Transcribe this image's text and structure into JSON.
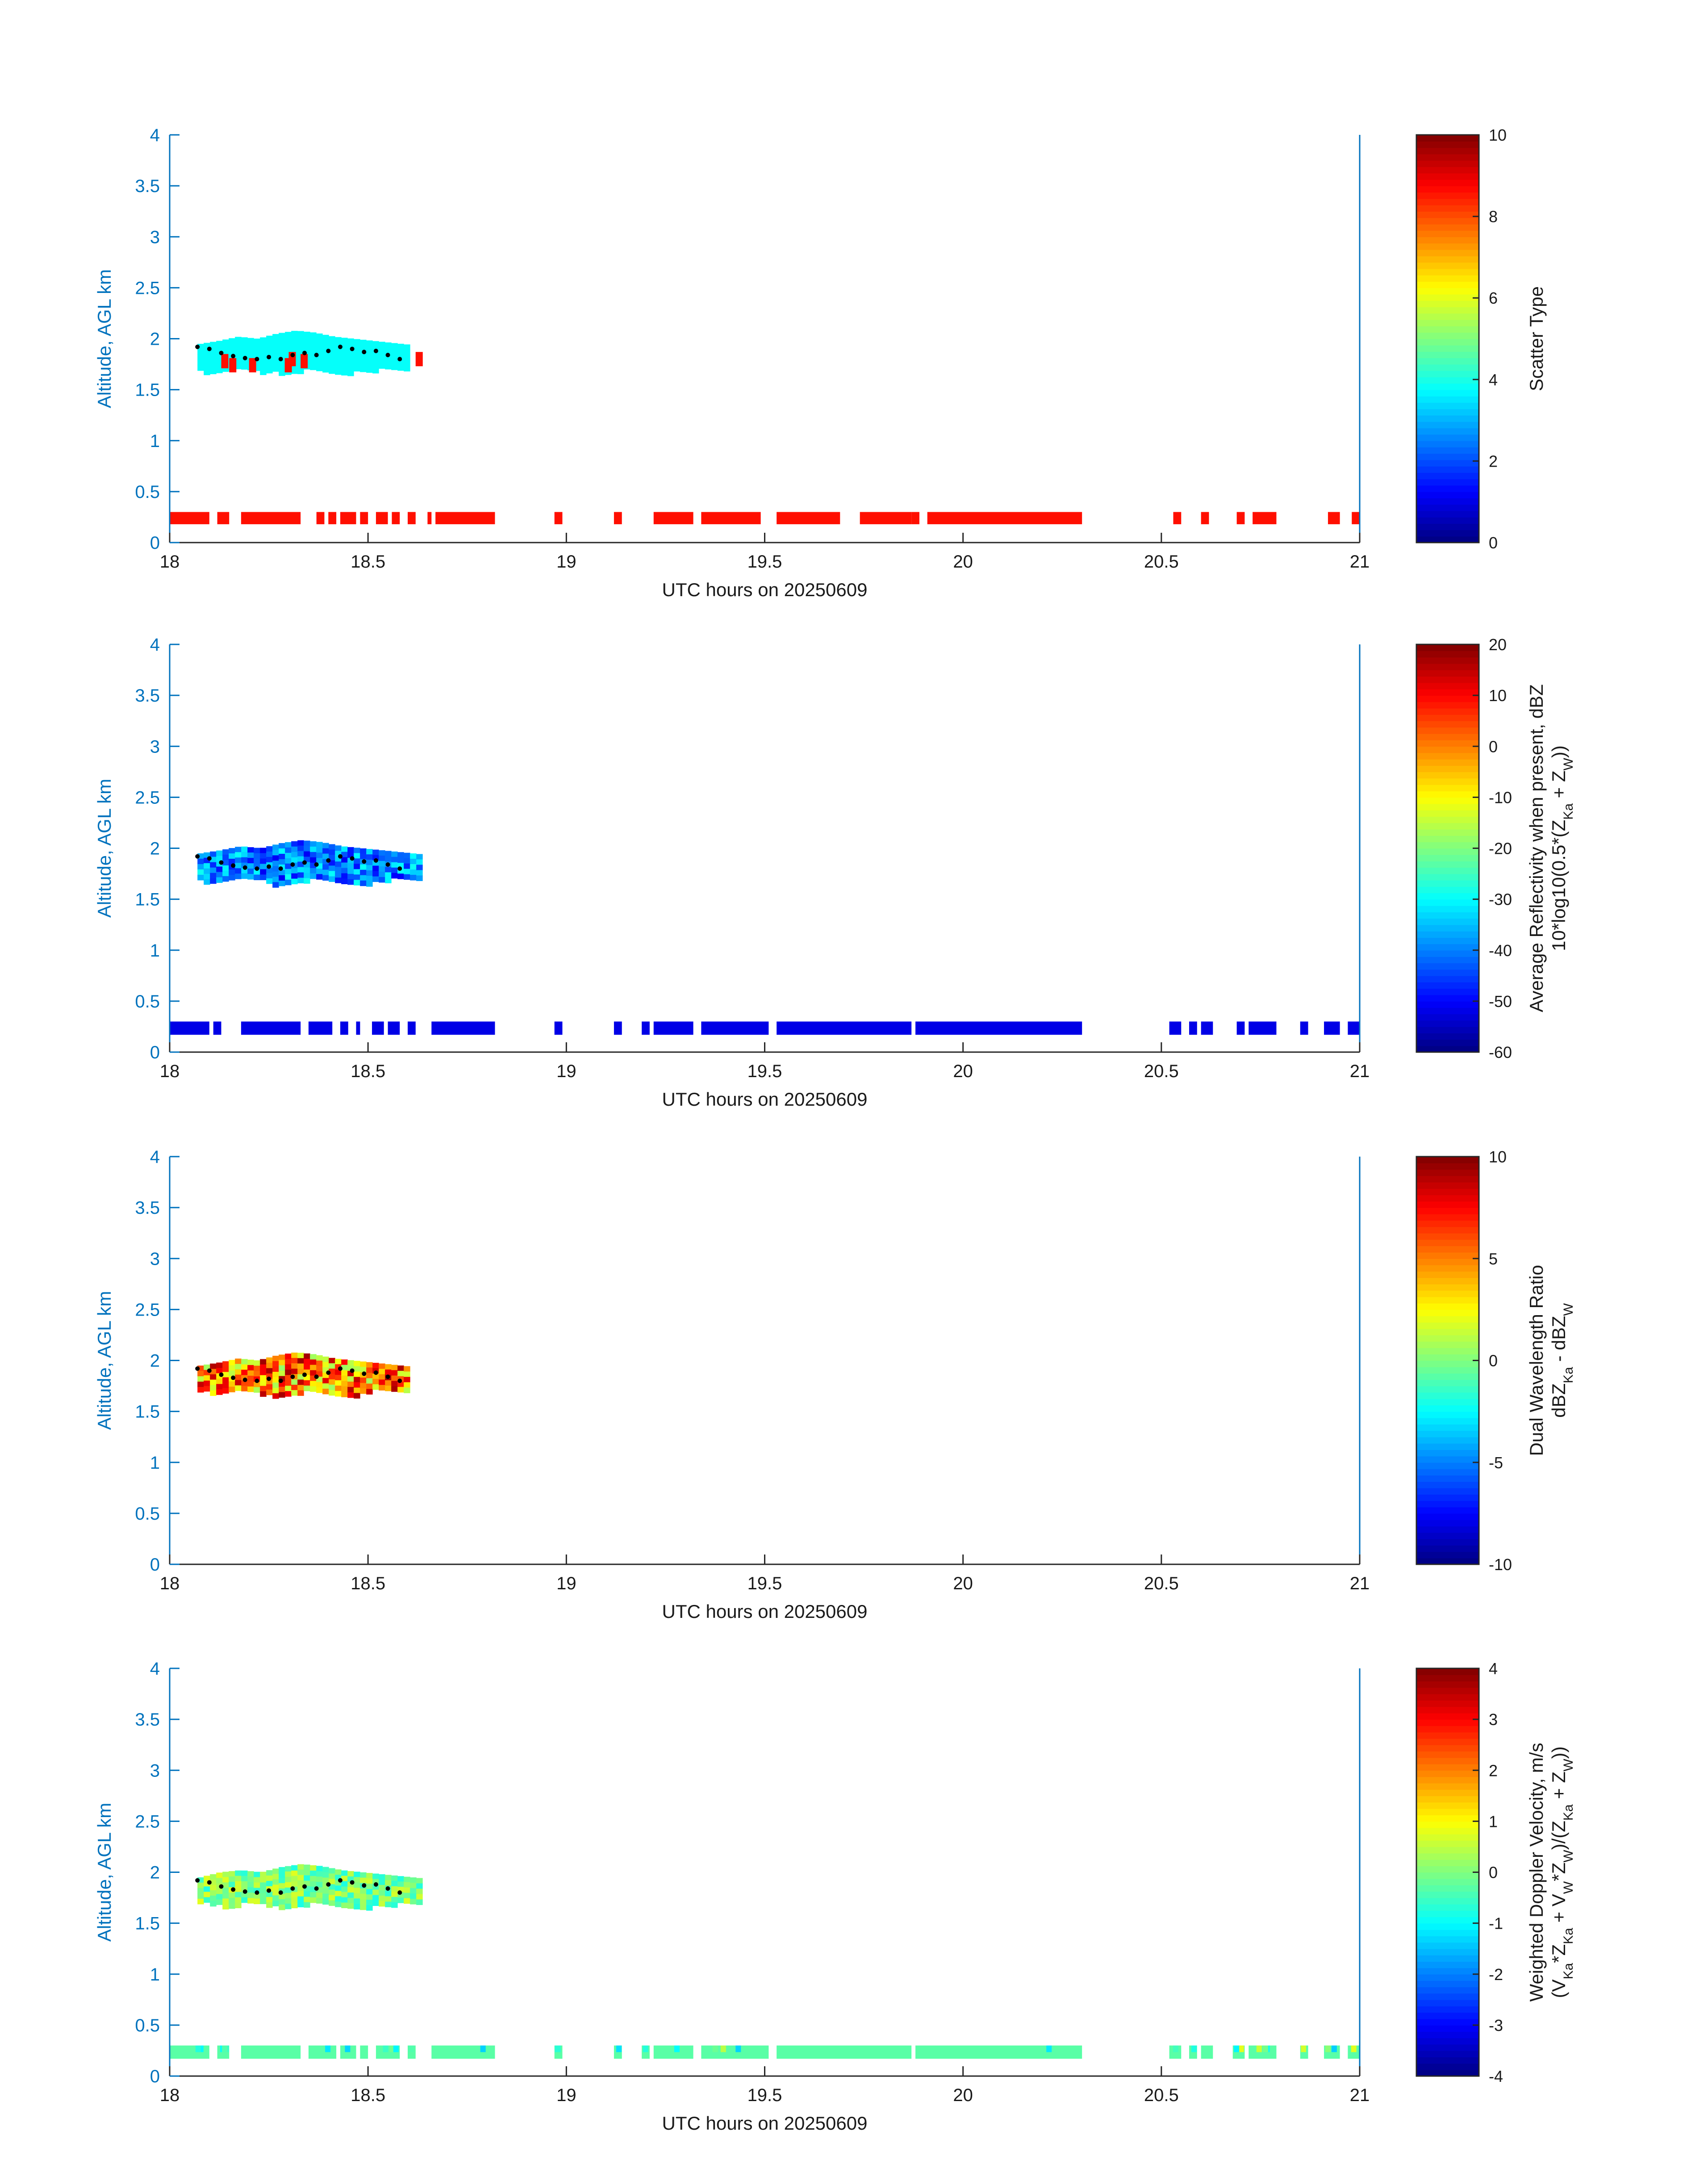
{
  "chart_data": [
    {
      "id": "scatter-type",
      "type": "heatmap",
      "xlabel": "UTC hours on 20250609",
      "ylabel": "Altitude, AGL km",
      "xlim": [
        18,
        21
      ],
      "ylim": [
        0,
        4
      ],
      "xticks": [
        "18",
        "18.5",
        "19",
        "19.5",
        "20",
        "20.5",
        "21"
      ],
      "yticks": [
        "0",
        "0.5",
        "1",
        "1.5",
        "2",
        "2.5",
        "3",
        "3.5",
        "4"
      ],
      "colorbar": {
        "label_lines": [
          "Scatter Type"
        ],
        "range": [
          0,
          10
        ],
        "ticks": [
          "0",
          "2",
          "4",
          "6",
          "8",
          "10"
        ]
      },
      "layers": [
        {
          "name": "surface-band",
          "x_segments": [
            [
              18.0,
              18.1
            ],
            [
              18.12,
              18.15
            ],
            [
              18.18,
              18.33
            ],
            [
              18.37,
              18.39
            ],
            [
              18.4,
              18.42
            ],
            [
              18.43,
              18.47
            ],
            [
              18.48,
              18.5
            ],
            [
              18.52,
              18.55
            ],
            [
              18.56,
              18.58
            ],
            [
              18.6,
              18.62
            ],
            [
              18.65,
              18.66
            ],
            [
              18.67,
              18.82
            ],
            [
              18.97,
              18.99
            ],
            [
              19.12,
              19.14
            ],
            [
              19.22,
              19.32
            ],
            [
              19.34,
              19.49
            ],
            [
              19.53,
              19.69
            ],
            [
              19.74,
              19.87
            ],
            [
              19.87,
              19.89
            ],
            [
              19.91,
              20.3
            ],
            [
              20.53,
              20.55
            ],
            [
              20.6,
              20.62
            ],
            [
              20.69,
              20.71
            ],
            [
              20.73,
              20.79
            ],
            [
              20.92,
              20.95
            ],
            [
              20.98,
              21.0
            ]
          ],
          "y_range": [
            0.18,
            0.3
          ],
          "value": 8.6
        },
        {
          "name": "cloud-layer",
          "x_range": [
            18.07,
            18.6
          ],
          "y_bottom": [
            1.7,
            1.68,
            1.72,
            1.7,
            1.68,
            1.7,
            1.72,
            1.7,
            1.68,
            1.7,
            1.72,
            1.7
          ],
          "y_top": [
            1.95,
            1.98,
            2.02,
            2.0,
            2.05,
            2.08,
            2.06,
            2.02,
            2.0,
            1.98,
            1.96,
            1.94
          ],
          "value": 3.8,
          "speckle_values": [
            8.6
          ],
          "speckle_fraction": 0.0
        },
        {
          "name": "cloud-speckle",
          "points": [
            [
              18.13,
              1.78,
              8.6
            ],
            [
              18.15,
              1.74,
              8.6
            ],
            [
              18.2,
              1.74,
              8.6
            ],
            [
              18.29,
              1.74,
              8.6
            ],
            [
              18.3,
              1.8,
              8.6
            ],
            [
              18.33,
              1.78,
              8.6
            ],
            [
              18.62,
              1.8,
              8.6
            ]
          ],
          "value": 8.6
        }
      ],
      "cloud_base_dots": {
        "x": [
          18.07,
          18.1,
          18.13,
          18.16,
          18.19,
          18.22,
          18.25,
          18.28,
          18.31,
          18.34,
          18.37,
          18.4,
          18.43,
          18.46,
          18.49,
          18.52,
          18.55,
          18.58
        ],
        "y": [
          1.92,
          1.9,
          1.86,
          1.83,
          1.81,
          1.8,
          1.82,
          1.8,
          1.84,
          1.86,
          1.84,
          1.88,
          1.92,
          1.9,
          1.87,
          1.88,
          1.84,
          1.8
        ]
      }
    },
    {
      "id": "reflectivity",
      "type": "heatmap",
      "xlabel": "UTC hours on 20250609",
      "ylabel": "Altitude, AGL km",
      "xlim": [
        18,
        21
      ],
      "ylim": [
        0,
        4
      ],
      "xticks": [
        "18",
        "18.5",
        "19",
        "19.5",
        "20",
        "20.5",
        "21"
      ],
      "yticks": [
        "0",
        "0.5",
        "1",
        "1.5",
        "2",
        "2.5",
        "3",
        "3.5",
        "4"
      ],
      "colorbar": {
        "label_lines": [
          "Average Reflectivity when present, dBZ",
          "10*log10(0.5*(Z_Ka + Z_W))"
        ],
        "range": [
          -60,
          20
        ],
        "ticks": [
          "-60",
          "-50",
          "-40",
          "-30",
          "-20",
          "-10",
          "0",
          "10",
          "20"
        ]
      },
      "layers": [
        {
          "name": "surface-band",
          "x_segments": [
            [
              18.0,
              18.1
            ],
            [
              18.11,
              18.13
            ],
            [
              18.18,
              18.33
            ],
            [
              18.35,
              18.41
            ],
            [
              18.43,
              18.45
            ],
            [
              18.47,
              18.48
            ],
            [
              18.51,
              18.54
            ],
            [
              18.55,
              18.58
            ],
            [
              18.6,
              18.62
            ],
            [
              18.66,
              18.82
            ],
            [
              18.97,
              18.99
            ],
            [
              19.12,
              19.14
            ],
            [
              19.19,
              19.21
            ],
            [
              19.22,
              19.32
            ],
            [
              19.34,
              19.51
            ],
            [
              19.53,
              19.87
            ],
            [
              19.88,
              20.3
            ],
            [
              20.52,
              20.55
            ],
            [
              20.57,
              20.59
            ],
            [
              20.6,
              20.63
            ],
            [
              20.69,
              20.71
            ],
            [
              20.72,
              20.79
            ],
            [
              20.85,
              20.87
            ],
            [
              20.91,
              20.95
            ],
            [
              20.97,
              21.0
            ]
          ],
          "y_range": [
            0.17,
            0.3
          ],
          "value": -52
        },
        {
          "name": "cloud-layer",
          "x_range": [
            18.07,
            18.63
          ],
          "y_bottom": [
            1.7,
            1.68,
            1.72,
            1.7,
            1.65,
            1.7,
            1.72,
            1.7,
            1.65,
            1.7,
            1.72,
            1.68
          ],
          "y_top": [
            1.95,
            1.98,
            2.02,
            2.0,
            2.05,
            2.08,
            2.06,
            2.02,
            2.0,
            1.98,
            1.96,
            1.94
          ],
          "value": -40
        }
      ],
      "cloud_base_dots": {
        "x": [
          18.07,
          18.1,
          18.13,
          18.16,
          18.19,
          18.22,
          18.25,
          18.28,
          18.31,
          18.34,
          18.37,
          18.4,
          18.43,
          18.46,
          18.49,
          18.52,
          18.55,
          18.58
        ],
        "y": [
          1.92,
          1.9,
          1.86,
          1.83,
          1.81,
          1.8,
          1.82,
          1.8,
          1.84,
          1.86,
          1.84,
          1.88,
          1.92,
          1.9,
          1.87,
          1.88,
          1.84,
          1.8
        ]
      }
    },
    {
      "id": "dwr",
      "type": "heatmap",
      "xlabel": "UTC hours on 20250609",
      "ylabel": "Altitude, AGL km",
      "xlim": [
        18,
        21
      ],
      "ylim": [
        0,
        4
      ],
      "xticks": [
        "18",
        "18.5",
        "19",
        "19.5",
        "20",
        "20.5",
        "21"
      ],
      "yticks": [
        "0",
        "0.5",
        "1",
        "1.5",
        "2",
        "2.5",
        "3",
        "3.5",
        "4"
      ],
      "colorbar": {
        "label_lines": [
          "Dual Wavelength Ratio",
          "dBZ_Ka - dBZ_W"
        ],
        "range": [
          -10,
          10
        ],
        "ticks": [
          "-10",
          "-5",
          "0",
          "5",
          "10"
        ]
      },
      "layers": [
        {
          "name": "cloud-layer",
          "x_range": [
            18.07,
            18.6
          ],
          "y_bottom": [
            1.72,
            1.68,
            1.72,
            1.7,
            1.65,
            1.7,
            1.72,
            1.7,
            1.65,
            1.72,
            1.72,
            1.7
          ],
          "y_top": [
            1.95,
            1.98,
            2.02,
            2.0,
            2.05,
            2.08,
            2.06,
            2.02,
            2.0,
            1.98,
            1.96,
            1.94
          ],
          "value": 4.5
        }
      ],
      "cloud_base_dots": {
        "x": [
          18.07,
          18.1,
          18.13,
          18.16,
          18.19,
          18.22,
          18.25,
          18.28,
          18.31,
          18.34,
          18.37,
          18.4,
          18.43,
          18.46,
          18.49,
          18.52,
          18.55,
          18.58
        ],
        "y": [
          1.92,
          1.9,
          1.86,
          1.83,
          1.81,
          1.8,
          1.82,
          1.8,
          1.84,
          1.86,
          1.84,
          1.88,
          1.92,
          1.9,
          1.87,
          1.88,
          1.84,
          1.8
        ]
      }
    },
    {
      "id": "doppler",
      "type": "heatmap",
      "xlabel": "UTC hours on 20250609",
      "ylabel": "Altitude, AGL km",
      "xlim": [
        18,
        21
      ],
      "ylim": [
        0,
        4
      ],
      "xticks": [
        "18",
        "18.5",
        "19",
        "19.5",
        "20",
        "20.5",
        "21"
      ],
      "yticks": [
        "0",
        "0.5",
        "1",
        "1.5",
        "2",
        "2.5",
        "3",
        "3.5",
        "4"
      ],
      "colorbar": {
        "label_lines": [
          "Weighted Doppler Velocity, m/s",
          "(V_Ka*Z_Ka + V_W*Z_W)/(Z_Ka + Z_W))"
        ],
        "range": [
          -4,
          4
        ],
        "ticks": [
          "-4",
          "-3",
          "-2",
          "-1",
          "0",
          "1",
          "2",
          "3",
          "4"
        ]
      },
      "layers": [
        {
          "name": "surface-band",
          "x_segments": [
            [
              18.0,
              18.1
            ],
            [
              18.12,
              18.15
            ],
            [
              18.18,
              18.33
            ],
            [
              18.35,
              18.42
            ],
            [
              18.43,
              18.47
            ],
            [
              18.48,
              18.5
            ],
            [
              18.52,
              18.58
            ],
            [
              18.6,
              18.62
            ],
            [
              18.66,
              18.82
            ],
            [
              18.97,
              18.99
            ],
            [
              19.12,
              19.14
            ],
            [
              19.19,
              19.21
            ],
            [
              19.22,
              19.32
            ],
            [
              19.34,
              19.51
            ],
            [
              19.53,
              19.87
            ],
            [
              19.88,
              20.3
            ],
            [
              20.52,
              20.55
            ],
            [
              20.57,
              20.59
            ],
            [
              20.6,
              20.63
            ],
            [
              20.68,
              20.71
            ],
            [
              20.72,
              20.79
            ],
            [
              20.85,
              20.87
            ],
            [
              20.91,
              20.95
            ],
            [
              20.97,
              21.0
            ]
          ],
          "y_range": [
            0.17,
            0.3
          ],
          "value": -0.3
        },
        {
          "name": "cloud-layer",
          "x_range": [
            18.07,
            18.63
          ],
          "y_bottom": [
            1.72,
            1.68,
            1.7,
            1.72,
            1.65,
            1.68,
            1.72,
            1.7,
            1.65,
            1.7,
            1.7,
            1.68
          ],
          "y_top": [
            1.95,
            2.0,
            2.02,
            2.0,
            2.05,
            2.08,
            2.06,
            2.02,
            2.0,
            1.98,
            1.96,
            1.94
          ],
          "value": 0.0
        }
      ],
      "cloud_base_dots": {
        "x": [
          18.07,
          18.1,
          18.13,
          18.16,
          18.19,
          18.22,
          18.25,
          18.28,
          18.31,
          18.34,
          18.37,
          18.4,
          18.43,
          18.46,
          18.49,
          18.52,
          18.55,
          18.58
        ],
        "y": [
          1.92,
          1.9,
          1.86,
          1.83,
          1.81,
          1.8,
          1.82,
          1.8,
          1.84,
          1.86,
          1.84,
          1.88,
          1.92,
          1.9,
          1.87,
          1.88,
          1.84,
          1.8
        ]
      }
    }
  ]
}
